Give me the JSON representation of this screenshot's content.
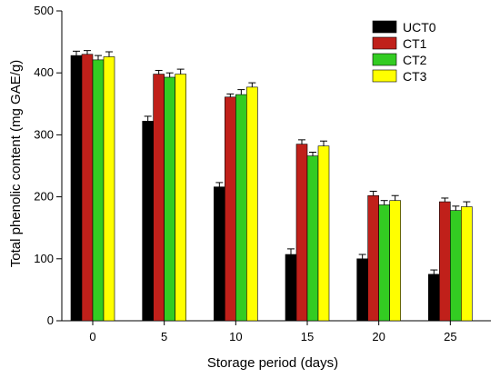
{
  "chart_data": {
    "type": "bar",
    "xlabel": "Storage period (days)",
    "ylabel": "Total phenolic content (mg GAE/g)",
    "categories": [
      "0",
      "5",
      "10",
      "15",
      "20",
      "25"
    ],
    "ylim": [
      0,
      500
    ],
    "yticks": [
      "0",
      "100",
      "200",
      "300",
      "400",
      "500"
    ],
    "legend_position": "top-right",
    "grid": false,
    "series": [
      {
        "name": "UCT0",
        "color": "#000000",
        "values": [
          428,
          322,
          216,
          107,
          100,
          75
        ],
        "errors": [
          7,
          8,
          7,
          9,
          7,
          7
        ]
      },
      {
        "name": "CT1",
        "color": "#c0201a",
        "values": [
          430,
          398,
          361,
          285,
          202,
          192
        ],
        "errors": [
          6,
          6,
          5,
          7,
          7,
          6
        ]
      },
      {
        "name": "CT2",
        "color": "#33cc22",
        "values": [
          421,
          393,
          365,
          266,
          187,
          178
        ],
        "errors": [
          7,
          7,
          8,
          6,
          7,
          7
        ]
      },
      {
        "name": "CT3",
        "color": "#ffff00",
        "values": [
          426,
          398,
          377,
          282,
          194,
          184
        ],
        "errors": [
          8,
          8,
          7,
          8,
          8,
          8
        ]
      }
    ]
  }
}
